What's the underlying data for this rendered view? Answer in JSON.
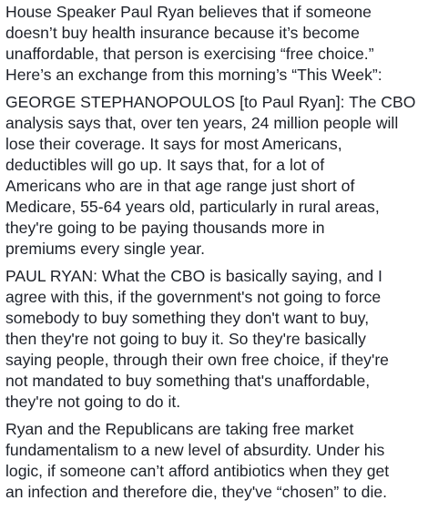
{
  "post": {
    "paragraphs": [
      "House Speaker Paul Ryan believes that if someone\ndoesn’t buy health insurance because it’s become\nunaffordable, that person is exercising “free choice.”\nHere’s an exchange from this morning’s “This Week”:",
      "GEORGE STEPHANOPOULOS [to Paul Ryan]: The CBO\nanalysis says that, over ten years, 24 million people will\nlose their coverage. It says for most Americans,\ndeductibles will go up. It says that, for a lot of\nAmericans who are in that age range just short of\nMedicare, 55-64 years old, particularly in rural areas,\nthey're going to be paying thousands more in\npremiums every single year.",
      "PAUL RYAN: What the CBO is basically saying, and I\nagree with this, if the government's not going to force\nsomebody to buy something they don't want to buy,\nthen they're not going to buy it. So they're basically\nsaying people, through their own free choice, if they're\nnot mandated to buy something that's unaffordable,\nthey're not going to do it.",
      "Ryan and the Republicans are taking free market\nfundamentalism to a new level of absurdity. Under his\nlogic, if someone can’t afford antibiotics when they get\nan infection and therefore die, they've “chosen” to die."
    ]
  }
}
